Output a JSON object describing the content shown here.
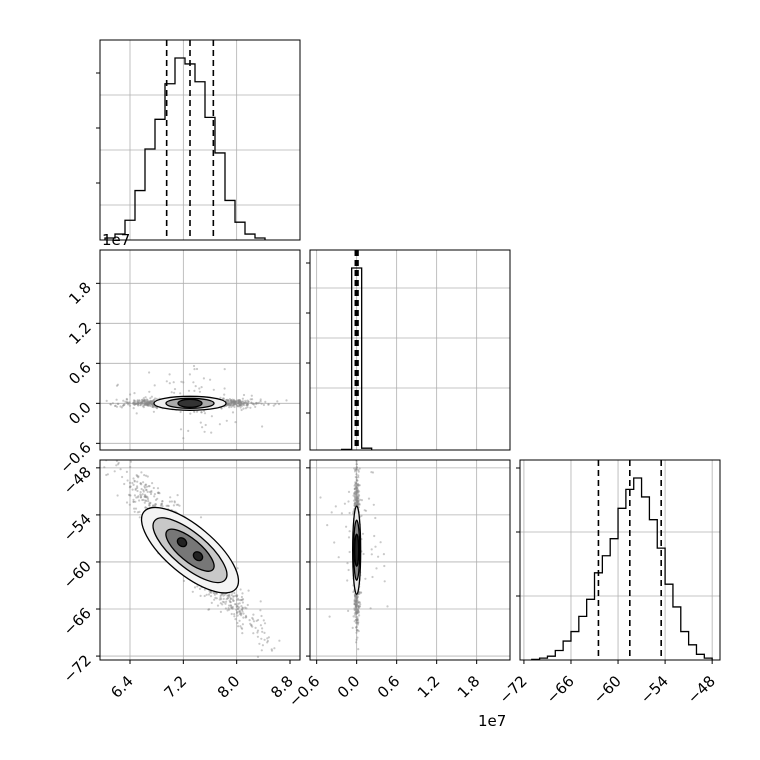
{
  "chart_data": [
    {
      "type": "histogram",
      "panel": "param1-marginal",
      "x_ticks": [
        "6.4",
        "7.2",
        "8.0",
        "8.8"
      ],
      "x_exponent_label": "1e7",
      "xlim": [
        5.95,
        8.95
      ],
      "bins": [
        {
          "x": 6.1,
          "count": 1
        },
        {
          "x": 6.25,
          "count": 3
        },
        {
          "x": 6.4,
          "count": 10
        },
        {
          "x": 6.55,
          "count": 25
        },
        {
          "x": 6.7,
          "count": 46
        },
        {
          "x": 6.85,
          "count": 61
        },
        {
          "x": 7.0,
          "count": 79
        },
        {
          "x": 7.15,
          "count": 92
        },
        {
          "x": 7.3,
          "count": 89
        },
        {
          "x": 7.45,
          "count": 80
        },
        {
          "x": 7.6,
          "count": 62
        },
        {
          "x": 7.75,
          "count": 44
        },
        {
          "x": 7.9,
          "count": 20
        },
        {
          "x": 8.05,
          "count": 9
        },
        {
          "x": 8.2,
          "count": 3
        },
        {
          "x": 8.35,
          "count": 1
        }
      ],
      "quantiles": [
        6.95,
        7.3,
        7.65
      ],
      "grid": true
    },
    {
      "type": "histogram",
      "panel": "param2-marginal",
      "xlim": [
        -0.7,
        2.3
      ],
      "bins": [
        {
          "x": -0.15,
          "count": 0.3
        },
        {
          "x": 0.0,
          "count": 100
        },
        {
          "x": 0.15,
          "count": 1
        }
      ],
      "quantiles": [
        -0.02,
        0.0,
        0.02
      ],
      "grid": true
    },
    {
      "type": "histogram",
      "panel": "param3-marginal",
      "x_ticks": [
        "−72",
        "−66",
        "−60",
        "−54",
        "−48"
      ],
      "xlim": [
        -72.5,
        -47
      ],
      "bins": [
        {
          "x": -70.5,
          "count": 0.3
        },
        {
          "x": -69.5,
          "count": 1
        },
        {
          "x": -68.5,
          "count": 2
        },
        {
          "x": -67.5,
          "count": 5
        },
        {
          "x": -66.5,
          "count": 10
        },
        {
          "x": -65.5,
          "count": 15
        },
        {
          "x": -64.5,
          "count": 23
        },
        {
          "x": -63.5,
          "count": 32
        },
        {
          "x": -62.5,
          "count": 46
        },
        {
          "x": -61.5,
          "count": 55
        },
        {
          "x": -60.5,
          "count": 64
        },
        {
          "x": -59.5,
          "count": 80
        },
        {
          "x": -58.5,
          "count": 90
        },
        {
          "x": -57.5,
          "count": 96
        },
        {
          "x": -56.5,
          "count": 86
        },
        {
          "x": -55.5,
          "count": 74
        },
        {
          "x": -54.5,
          "count": 59
        },
        {
          "x": -53.5,
          "count": 40
        },
        {
          "x": -52.5,
          "count": 28
        },
        {
          "x": -51.5,
          "count": 15
        },
        {
          "x": -50.5,
          "count": 8
        },
        {
          "x": -49.5,
          "count": 3
        },
        {
          "x": -48.5,
          "count": 1
        }
      ],
      "quantiles": [
        -62.5,
        -58.5,
        -54.5
      ],
      "grid": true
    },
    {
      "type": "scatter",
      "panel": "param1-vs-param2",
      "x_ticks": [
        "6.4",
        "7.2",
        "8.0",
        "8.8"
      ],
      "y_ticks": [
        "−0.6",
        "0.0",
        "0.6",
        "1.2",
        "1.8"
      ],
      "y_exponent_label": "1e7",
      "xlim": [
        5.95,
        8.95
      ],
      "ylim": [
        -0.7,
        2.3
      ],
      "center": [
        7.3,
        0.0
      ],
      "spread": [
        0.45,
        0.03
      ],
      "contours": true,
      "grid": true
    },
    {
      "type": "scatter",
      "panel": "param1-vs-param3",
      "x_ticks": [
        "6.4",
        "7.2",
        "8.0",
        "8.8"
      ],
      "y_ticks": [
        "−72",
        "−66",
        "−60",
        "−54",
        "−48"
      ],
      "x_exponent_label": "1e7",
      "xlim": [
        5.95,
        8.95
      ],
      "ylim": [
        -72.5,
        -47
      ],
      "center": [
        7.3,
        -58.5
      ],
      "correlation": "negative",
      "contours": true,
      "grid": true
    },
    {
      "type": "scatter",
      "panel": "param2-vs-param3",
      "x_ticks": [
        "−0.6",
        "0.0",
        "0.6",
        "1.2",
        "1.8"
      ],
      "y_ticks": [],
      "x_exponent_label": "1e7",
      "xlim": [
        -0.7,
        2.3
      ],
      "ylim": [
        -72.5,
        -47
      ],
      "center": [
        0.0,
        -58.5
      ],
      "contours": true,
      "grid": true
    }
  ]
}
